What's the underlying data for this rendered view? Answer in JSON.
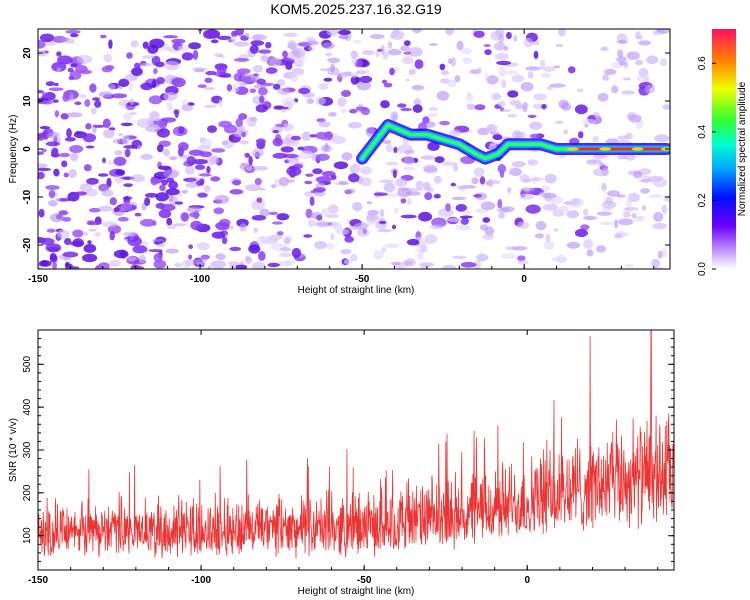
{
  "title": "KOM5.2025.237.16.32.G19",
  "chart_data": [
    {
      "type": "heatmap",
      "name": "spectrogram",
      "xlabel": "Height of straight line (km)",
      "ylabel": "Frequency (Hz)",
      "xlim": [
        -150,
        45
      ],
      "ylim": [
        -25,
        25
      ],
      "xticks": [
        -150,
        -100,
        -50,
        0
      ],
      "yticks": [
        -20,
        -10,
        0,
        10,
        20
      ],
      "colorbar": {
        "label": "Normalized spectral amplitude",
        "range": [
          0,
          0.7
        ],
        "ticks": [
          "0.0",
          "0.2",
          "0.4",
          "0.6"
        ],
        "tick_values": [
          0,
          0.2,
          0.4,
          0.6
        ]
      },
      "signal_track": [
        {
          "x": -50,
          "y": -2
        },
        {
          "x": -42,
          "y": 5
        },
        {
          "x": -35,
          "y": 3
        },
        {
          "x": -30,
          "y": 3
        },
        {
          "x": -25,
          "y": 2
        },
        {
          "x": -20,
          "y": 1
        },
        {
          "x": -15,
          "y": -1
        },
        {
          "x": -12,
          "y": -2
        },
        {
          "x": -8,
          "y": -1
        },
        {
          "x": -5,
          "y": 1
        },
        {
          "x": 0,
          "y": 1
        },
        {
          "x": 5,
          "y": 1
        },
        {
          "x": 10,
          "y": 0
        },
        {
          "x": 15,
          "y": 0
        },
        {
          "x": 25,
          "y": 0
        },
        {
          "x": 35,
          "y": 0
        },
        {
          "x": 44,
          "y": 0
        }
      ]
    },
    {
      "type": "line",
      "name": "snr",
      "xlabel": "Height of straight line (km)",
      "ylabel": "SNR (10 * v/v)",
      "xlim": [
        -150,
        45
      ],
      "ylim": [
        20,
        580
      ],
      "xticks": [
        -150,
        -100,
        -50,
        0
      ],
      "yticks": [
        100,
        200,
        300,
        400,
        500
      ],
      "color": "#ee3333",
      "trend": [
        {
          "x": -150,
          "base": 85,
          "spread": 100
        },
        {
          "x": -100,
          "base": 85,
          "spread": 105
        },
        {
          "x": -50,
          "base": 90,
          "spread": 115
        },
        {
          "x": -25,
          "base": 110,
          "spread": 130
        },
        {
          "x": 0,
          "base": 140,
          "spread": 150
        },
        {
          "x": 20,
          "base": 170,
          "spread": 180
        },
        {
          "x": 45,
          "base": 190,
          "spread": 200
        }
      ],
      "peak": {
        "x": 38,
        "y": 580
      }
    }
  ]
}
